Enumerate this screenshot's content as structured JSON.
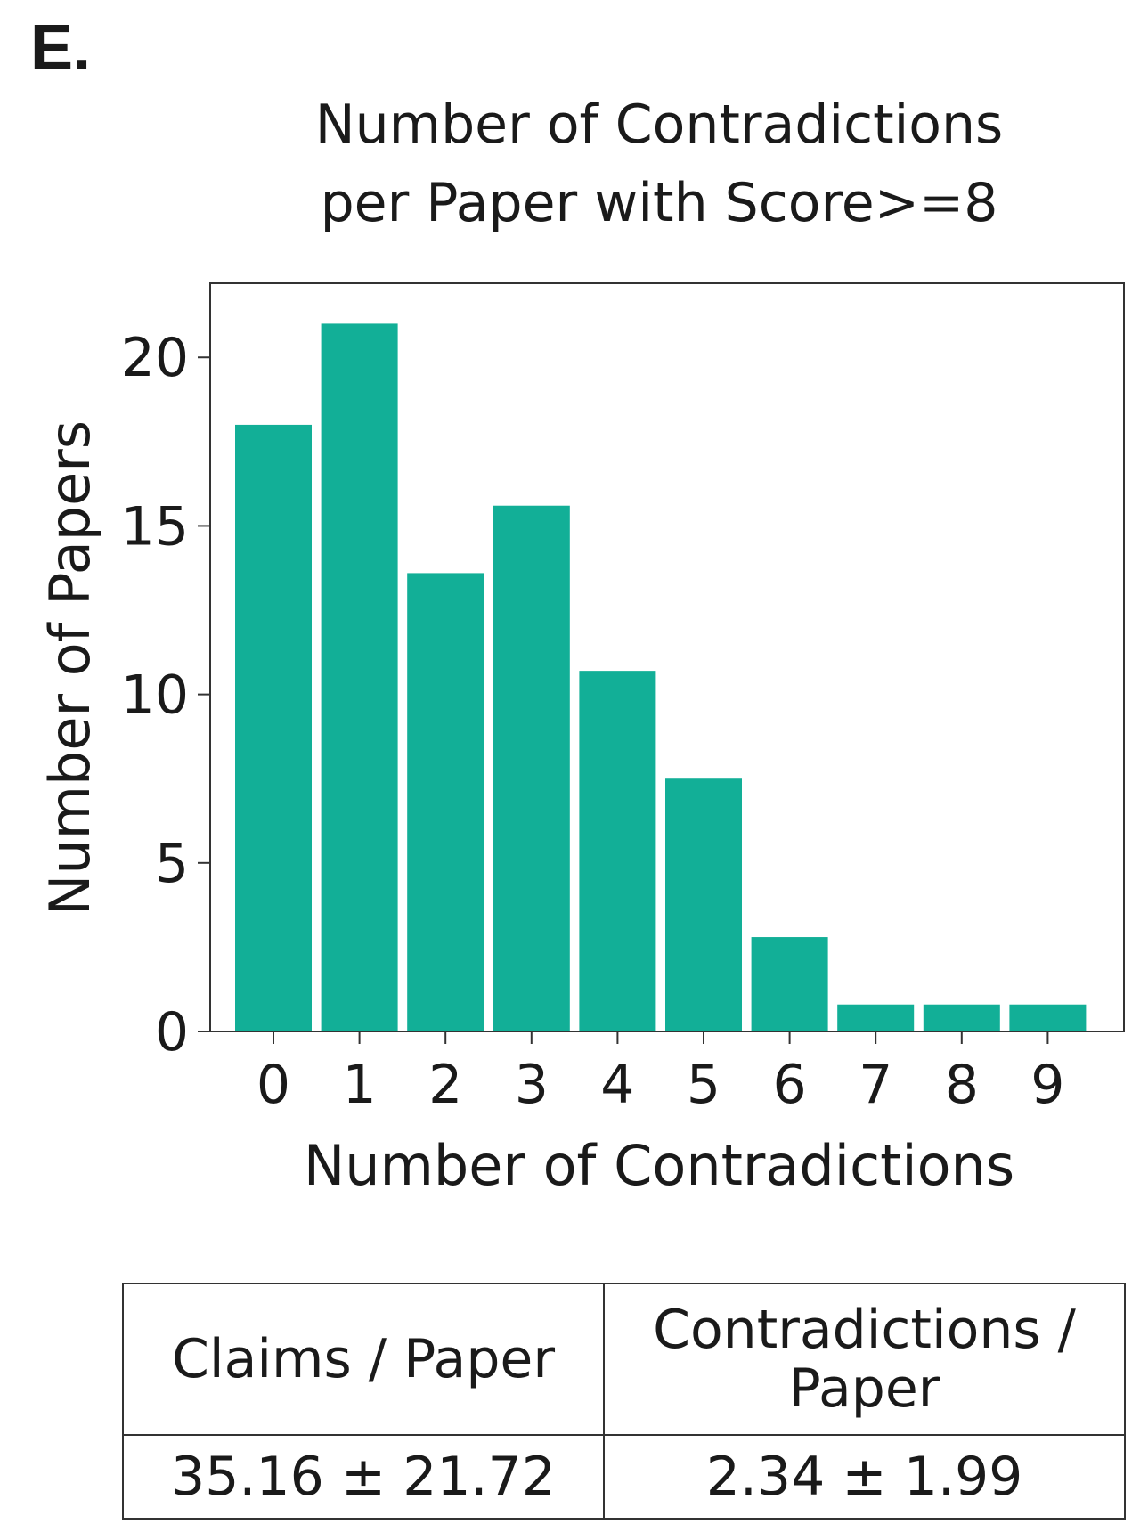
{
  "panel_label": "E.",
  "chart_data": {
    "type": "bar",
    "title": [
      "Number of Contradictions",
      "per Paper with Score>=8"
    ],
    "xlabel": "Number of Contradictions",
    "ylabel": "Number of Papers",
    "categories": [
      "0",
      "1",
      "2",
      "3",
      "4",
      "5",
      "6",
      "7",
      "8",
      "9"
    ],
    "values": [
      18,
      21,
      13.6,
      15.6,
      10.7,
      7.5,
      2.8,
      0.8,
      0.8,
      0.8
    ],
    "yticks": [
      0,
      5,
      10,
      15,
      20
    ],
    "ylim": [
      0,
      22.2
    ],
    "bar_color": "#12af97",
    "grid": false,
    "legend": "none"
  },
  "summary_table": {
    "headers": [
      "Claims / Paper",
      "Contradictions / Paper"
    ],
    "values": [
      "35.16 ± 21.72",
      "2.34 ± 1.99"
    ]
  }
}
